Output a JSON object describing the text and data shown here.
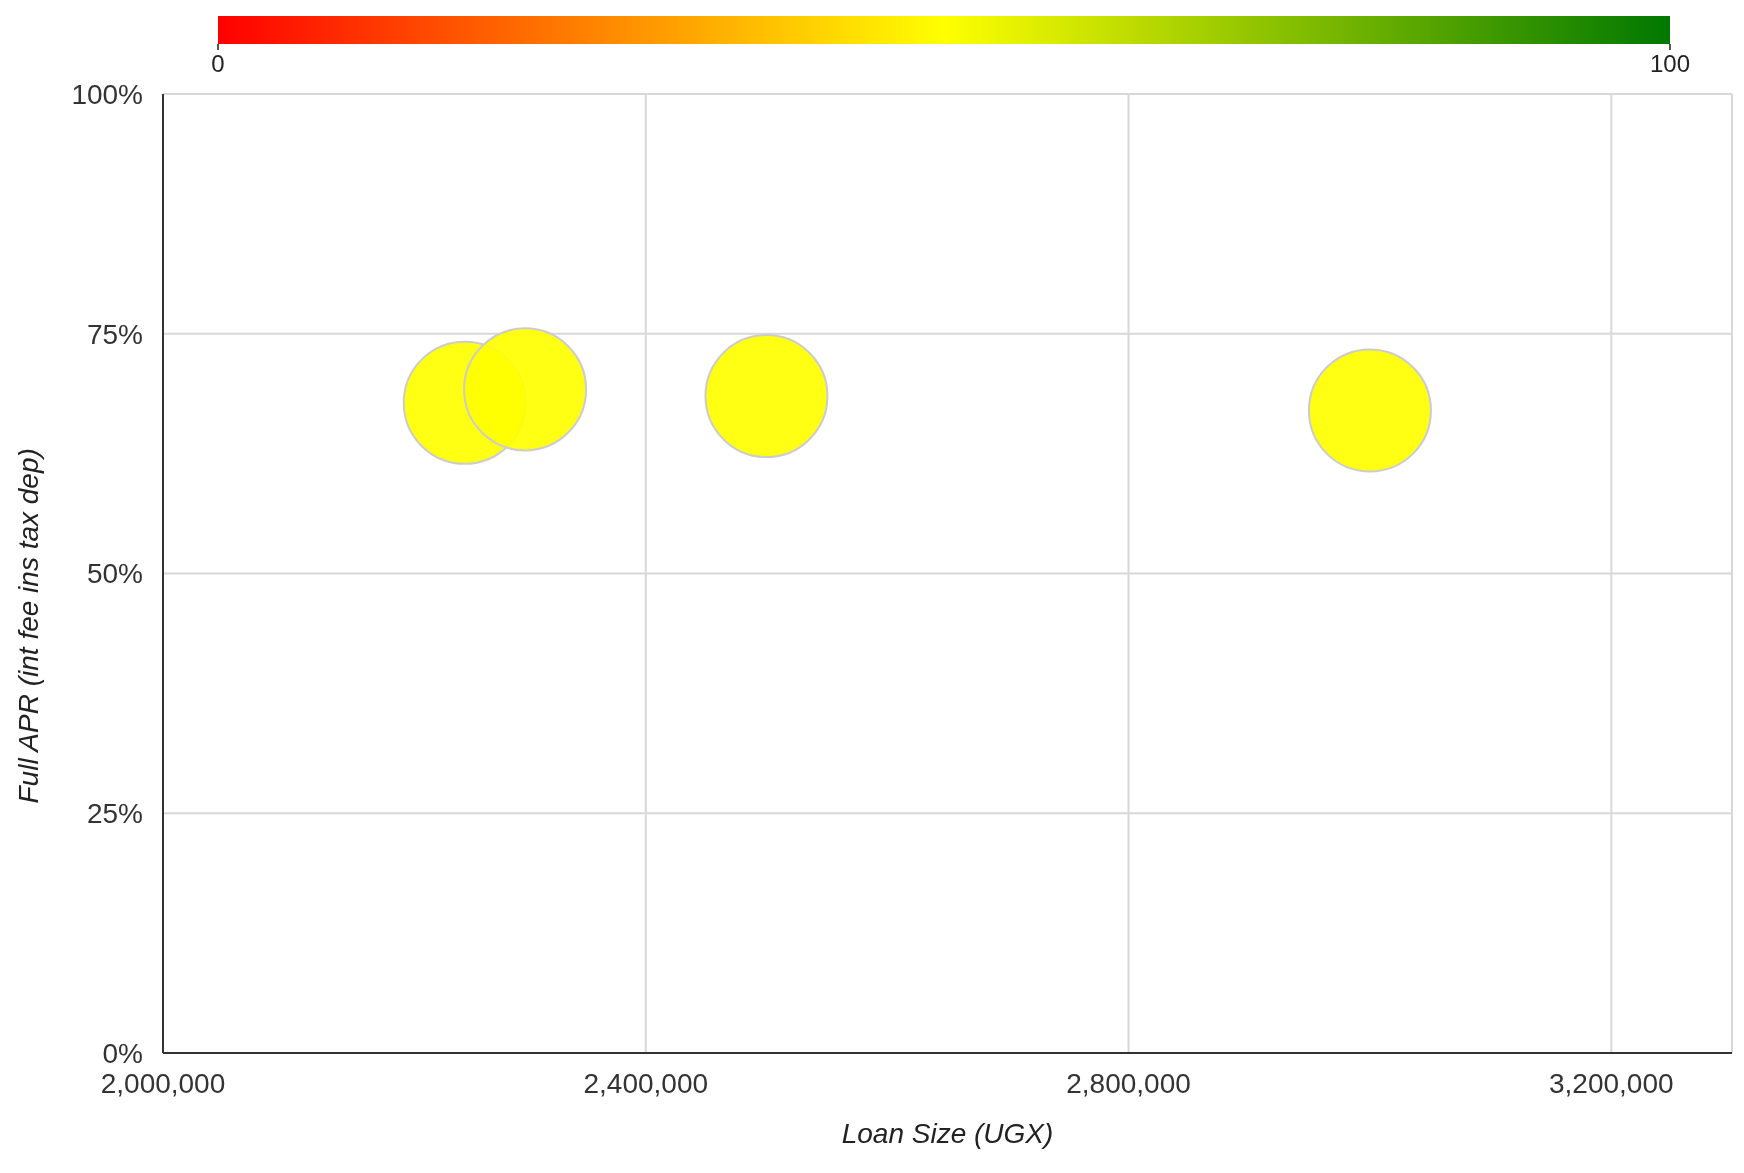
{
  "chart_data": {
    "type": "bubble",
    "xlabel": "Loan Size (UGX)",
    "ylabel": "Full APR (int fee ins tax dep)",
    "x": [
      2250000,
      2300000,
      2500000,
      3000000
    ],
    "values": [
      67.8,
      69.2,
      68.5,
      67.0
    ],
    "sizes": [
      1,
      1,
      1,
      1
    ],
    "cvalues": [
      50,
      50,
      50,
      50
    ],
    "clim": [
      0,
      100
    ],
    "cticks": [
      {
        "value": 0,
        "label": "0"
      },
      {
        "value": 100,
        "label": "100"
      }
    ],
    "xlim": [
      2000000,
      3300000
    ],
    "xticks": [
      {
        "value": 2000000,
        "label": "2,000,000"
      },
      {
        "value": 2400000,
        "label": "2,400,000"
      },
      {
        "value": 2800000,
        "label": "2,800,000"
      },
      {
        "value": 3200000,
        "label": "3,200,000"
      }
    ],
    "ylim": [
      0,
      100
    ],
    "yticks": [
      {
        "value": 0,
        "label": "0%"
      },
      {
        "value": 25,
        "label": "25%"
      },
      {
        "value": 50,
        "label": "50%"
      },
      {
        "value": 75,
        "label": "75%"
      },
      {
        "value": 100,
        "label": "100%"
      }
    ],
    "grid": true,
    "legend": false
  }
}
